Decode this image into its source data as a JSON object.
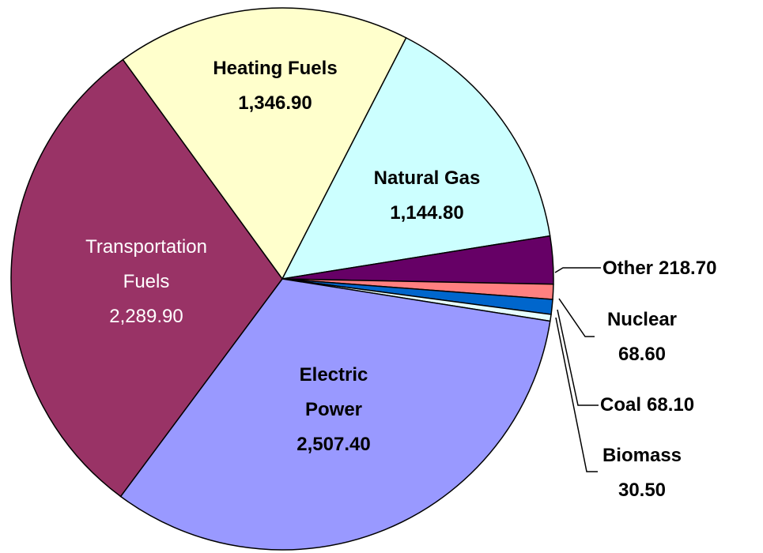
{
  "chart_data": {
    "type": "pie",
    "categories": [
      "Heating Fuels",
      "Natural Gas",
      "Other",
      "Nuclear",
      "Coal",
      "Biomass",
      "Electric Power",
      "Transportation Fuels"
    ],
    "values": [
      1346.9,
      1144.8,
      218.7,
      68.6,
      68.1,
      30.5,
      2507.4,
      2289.9
    ],
    "value_labels": [
      "1,346.90",
      "1,144.80",
      "218.70",
      "68.60",
      "68.10",
      "30.50",
      "2,507.40",
      "2,289.90"
    ],
    "colors": [
      "#ffffcc",
      "#ccffff",
      "#660066",
      "#ff8080",
      "#0066cc",
      "#e6ffff",
      "#9999ff",
      "#993366"
    ]
  }
}
